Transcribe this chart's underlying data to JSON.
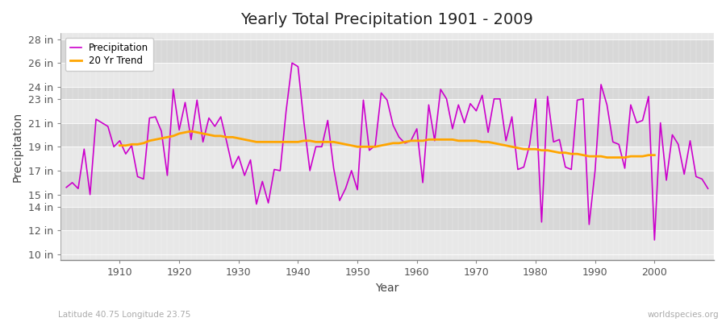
{
  "title": "Yearly Total Precipitation 1901 - 2009",
  "xlabel": "Year",
  "ylabel": "Precipitation",
  "lat_lon_label": "Latitude 40.75 Longitude 23.75",
  "watermark": "worldspecies.org",
  "bg_color": "#ffffff",
  "plot_bg_color": "#e8e8e8",
  "band_light": "#e8e8e8",
  "band_dark": "#d8d8d8",
  "precip_color": "#cc00cc",
  "trend_color": "#ffa500",
  "years": [
    1901,
    1902,
    1903,
    1904,
    1905,
    1906,
    1907,
    1908,
    1909,
    1910,
    1911,
    1912,
    1913,
    1914,
    1915,
    1916,
    1917,
    1918,
    1919,
    1920,
    1921,
    1922,
    1923,
    1924,
    1925,
    1926,
    1927,
    1928,
    1929,
    1930,
    1931,
    1932,
    1933,
    1934,
    1935,
    1936,
    1937,
    1938,
    1939,
    1940,
    1941,
    1942,
    1943,
    1944,
    1945,
    1946,
    1947,
    1948,
    1949,
    1950,
    1951,
    1952,
    1953,
    1954,
    1955,
    1956,
    1957,
    1958,
    1959,
    1960,
    1961,
    1962,
    1963,
    1964,
    1965,
    1966,
    1967,
    1968,
    1969,
    1970,
    1971,
    1972,
    1973,
    1974,
    1975,
    1976,
    1977,
    1978,
    1979,
    1980,
    1981,
    1982,
    1983,
    1984,
    1985,
    1986,
    1987,
    1988,
    1989,
    1990,
    1991,
    1992,
    1993,
    1994,
    1995,
    1996,
    1997,
    1998,
    1999,
    2000,
    2001,
    2002,
    2003,
    2004,
    2005,
    2006,
    2007,
    2008,
    2009
  ],
  "precip": [
    15.6,
    16.0,
    15.5,
    18.8,
    15.0,
    21.3,
    21.0,
    20.7,
    19.0,
    19.5,
    18.4,
    19.1,
    16.5,
    16.3,
    21.4,
    21.5,
    20.3,
    16.6,
    23.8,
    20.4,
    22.7,
    19.6,
    22.9,
    19.4,
    21.4,
    20.7,
    21.5,
    19.4,
    17.2,
    18.2,
    16.6,
    17.9,
    14.2,
    16.1,
    14.3,
    17.1,
    17.0,
    22.0,
    26.0,
    25.7,
    21.0,
    17.0,
    19.0,
    19.0,
    21.2,
    17.2,
    14.5,
    15.5,
    17.0,
    15.4,
    22.9,
    18.7,
    19.1,
    23.5,
    22.9,
    20.8,
    19.8,
    19.3,
    19.5,
    20.5,
    16.0,
    22.5,
    19.5,
    23.8,
    23.0,
    20.5,
    22.5,
    21.0,
    22.6,
    22.0,
    23.3,
    20.2,
    23.0,
    23.0,
    19.5,
    21.5,
    17.1,
    17.3,
    19.2,
    23.0,
    12.7,
    23.2,
    19.4,
    19.6,
    17.3,
    17.1,
    22.9,
    23.0,
    12.5,
    17.0,
    24.2,
    22.5,
    19.4,
    19.2,
    17.2,
    22.5,
    21.0,
    21.2,
    23.2,
    11.2,
    21.0,
    16.2,
    20.0,
    19.2,
    16.7,
    19.5,
    16.5,
    16.3,
    15.5
  ],
  "trend_years": [
    1910,
    1911,
    1912,
    1913,
    1914,
    1915,
    1916,
    1917,
    1918,
    1919,
    1920,
    1921,
    1922,
    1923,
    1924,
    1925,
    1926,
    1927,
    1928,
    1929,
    1930,
    1931,
    1932,
    1933,
    1934,
    1935,
    1936,
    1937,
    1938,
    1939,
    1940,
    1941,
    1942,
    1943,
    1944,
    1945,
    1946,
    1947,
    1948,
    1949,
    1950,
    1951,
    1952,
    1953,
    1954,
    1955,
    1956,
    1957,
    1958,
    1959,
    1960,
    1961,
    1962,
    1963,
    1964,
    1965,
    1966,
    1967,
    1968,
    1969,
    1970,
    1971,
    1972,
    1973,
    1974,
    1975,
    1976,
    1977,
    1978,
    1979,
    1980,
    1981,
    1982,
    1983,
    1984,
    1985,
    1986,
    1987,
    1988,
    1989,
    1990,
    1991,
    1992,
    1993,
    1994,
    1995,
    1996,
    1997,
    1998,
    1999,
    2000
  ],
  "trend": [
    19.1,
    19.1,
    19.2,
    19.2,
    19.3,
    19.5,
    19.6,
    19.7,
    19.8,
    19.9,
    20.1,
    20.2,
    20.3,
    20.2,
    20.1,
    20.0,
    19.9,
    19.9,
    19.8,
    19.8,
    19.7,
    19.6,
    19.5,
    19.4,
    19.4,
    19.4,
    19.4,
    19.4,
    19.4,
    19.4,
    19.4,
    19.5,
    19.5,
    19.4,
    19.4,
    19.4,
    19.4,
    19.3,
    19.2,
    19.1,
    19.0,
    19.0,
    19.0,
    19.0,
    19.1,
    19.2,
    19.3,
    19.3,
    19.4,
    19.5,
    19.5,
    19.5,
    19.6,
    19.6,
    19.6,
    19.6,
    19.6,
    19.5,
    19.5,
    19.5,
    19.5,
    19.4,
    19.4,
    19.3,
    19.2,
    19.1,
    19.0,
    18.9,
    18.8,
    18.8,
    18.8,
    18.7,
    18.7,
    18.6,
    18.5,
    18.5,
    18.4,
    18.4,
    18.3,
    18.2,
    18.2,
    18.2,
    18.1,
    18.1,
    18.1,
    18.1,
    18.2,
    18.2,
    18.2,
    18.3,
    18.3
  ],
  "ylim": [
    9.5,
    28.5
  ],
  "yticks": [
    10,
    12,
    14,
    15,
    17,
    19,
    21,
    23,
    24,
    26,
    28
  ],
  "xlim": [
    1900,
    2010
  ],
  "xticks": [
    1910,
    1920,
    1930,
    1940,
    1950,
    1960,
    1970,
    1980,
    1990,
    2000
  ]
}
